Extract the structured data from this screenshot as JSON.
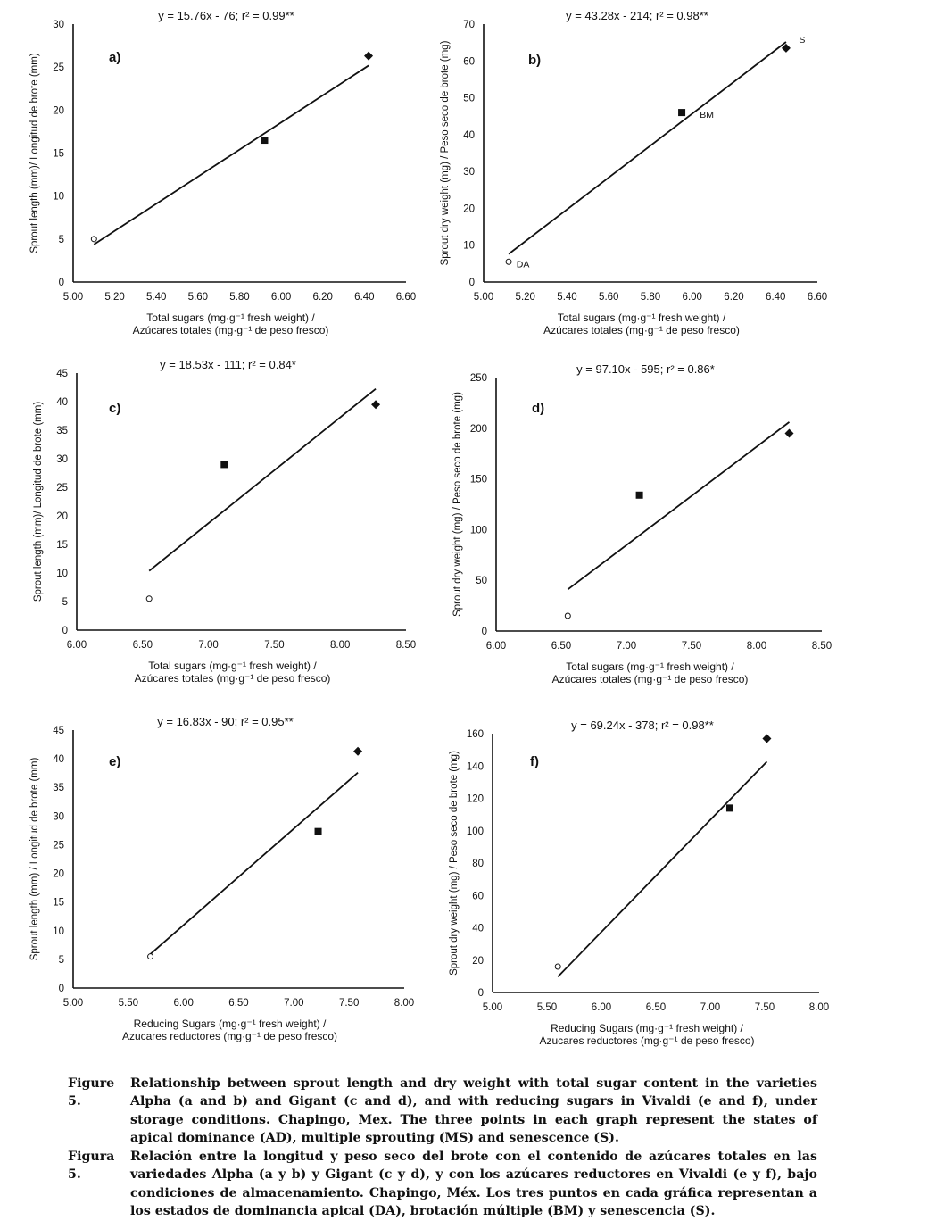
{
  "panels": [
    {
      "id": "a",
      "panel_label": "a)",
      "equation": "y = 15.76x - 76; r² = 0.99**",
      "ylabel": "Sprout length (mm)/ Longitud de brote (mm)",
      "xlabel_line1": "Total sugars (mg·g⁻¹ fresh weight) /",
      "xlabel_line2": "Azúcares totales (mg·g⁻¹ de peso fresco)",
      "xticks": [
        "5.00",
        "5.20",
        "5.40",
        "5.60",
        "5.80",
        "6.00",
        "6.20",
        "6.40",
        "6.60"
      ],
      "yticks": [
        "0",
        "5",
        "10",
        "15",
        "20",
        "25",
        "30"
      ],
      "point_labels": []
    },
    {
      "id": "b",
      "panel_label": "b)",
      "equation": "y = 43.28x - 214; r² = 0.98**",
      "ylabel": "Sprout dry weight (mg) / Peso seco de brote (mg)",
      "xlabel_line1": "Total sugars (mg·g⁻¹ fresh weight) /",
      "xlabel_line2": "Azúcares totales (mg·g⁻¹ de peso fresco)",
      "xticks": [
        "5.00",
        "5.20",
        "5.40",
        "5.60",
        "5.80",
        "6.00",
        "6.20",
        "6.40",
        "6.60"
      ],
      "yticks": [
        "0",
        "10",
        "20",
        "30",
        "40",
        "50",
        "60",
        "70"
      ],
      "point_labels": [
        "DA",
        "BM",
        "S"
      ]
    },
    {
      "id": "c",
      "panel_label": "c)",
      "equation": "y = 18.53x - 111; r² = 0.84*",
      "ylabel": "Sprout length (mm)/ Longitud de brote (mm)",
      "xlabel_line1": "Total sugars (mg·g⁻¹ fresh weight) /",
      "xlabel_line2": "Azúcares totales (mg·g⁻¹ de peso fresco)",
      "xticks": [
        "6.00",
        "6.50",
        "7.00",
        "7.50",
        "8.00",
        "8.50"
      ],
      "yticks": [
        "0",
        "5",
        "10",
        "15",
        "20",
        "25",
        "30",
        "35",
        "40",
        "45"
      ],
      "point_labels": []
    },
    {
      "id": "d",
      "panel_label": "d)",
      "equation": "y = 97.10x - 595; r² = 0.86*",
      "ylabel": "Sprout dry weight (mg) / Peso seco de brote (mg)",
      "xlabel_line1": "Total sugars (mg·g⁻¹ fresh weight) /",
      "xlabel_line2": "Azúcares totales (mg·g⁻¹ de peso fresco)",
      "xticks": [
        "6.00",
        "6.50",
        "7.00",
        "7.50",
        "8.00",
        "8.50"
      ],
      "yticks": [
        "0",
        "50",
        "100",
        "150",
        "200",
        "250"
      ],
      "point_labels": []
    },
    {
      "id": "e",
      "panel_label": "e)",
      "equation": "y = 16.83x - 90; r² = 0.95**",
      "ylabel": "Sprout length (mm) / Longitud de brote (mm)",
      "xlabel_line1": "Reducing Sugars (mg·g⁻¹ fresh weight) /",
      "xlabel_line2": "Azucares reductores (mg·g⁻¹ de peso fresco)",
      "xticks": [
        "5.00",
        "5.50",
        "6.00",
        "6.50",
        "7.00",
        "7.50",
        "8.00"
      ],
      "yticks": [
        "0",
        "5",
        "10",
        "15",
        "20",
        "25",
        "30",
        "35",
        "40",
        "45"
      ],
      "point_labels": []
    },
    {
      "id": "f",
      "panel_label": "f)",
      "equation": "y = 69.24x - 378; r² = 0.98**",
      "ylabel": "Sprout dry weight (mg) / Peso seco de brote (mg)",
      "xlabel_line1": "Reducing Sugars (mg·g⁻¹ fresh weight) /",
      "xlabel_line2": "Azucares reductores (mg·g⁻¹ de peso fresco)",
      "xticks": [
        "5.00",
        "5.50",
        "6.00",
        "6.50",
        "7.00",
        "7.50",
        "8.00"
      ],
      "yticks": [
        "0",
        "20",
        "40",
        "60",
        "80",
        "100",
        "120",
        "140",
        "160"
      ],
      "point_labels": []
    }
  ],
  "chart_data": [
    {
      "type": "scatter",
      "panel": "a",
      "xlim": [
        5.0,
        6.6
      ],
      "ylim": [
        0,
        30
      ],
      "points": [
        {
          "state": "AD",
          "marker": "circle-open",
          "x": 5.1,
          "y": 5.0
        },
        {
          "state": "MS",
          "marker": "square",
          "x": 5.92,
          "y": 16.5
        },
        {
          "state": "S",
          "marker": "diamond",
          "x": 6.42,
          "y": 26.3
        }
      ],
      "fit": {
        "slope": 15.76,
        "intercept": -76,
        "x_range": [
          5.1,
          6.42
        ]
      }
    },
    {
      "type": "scatter",
      "panel": "b",
      "xlim": [
        5.0,
        6.6
      ],
      "ylim": [
        0,
        70
      ],
      "points": [
        {
          "state": "DA",
          "marker": "circle-open",
          "x": 5.12,
          "y": 5.5
        },
        {
          "state": "BM",
          "marker": "square",
          "x": 5.95,
          "y": 46.0
        },
        {
          "state": "S",
          "marker": "diamond",
          "x": 6.45,
          "y": 63.5
        }
      ],
      "fit": {
        "slope": 43.28,
        "intercept": -214,
        "x_range": [
          5.12,
          6.45
        ]
      }
    },
    {
      "type": "scatter",
      "panel": "c",
      "xlim": [
        6.0,
        8.5
      ],
      "ylim": [
        0,
        45
      ],
      "points": [
        {
          "state": "AD",
          "marker": "circle-open",
          "x": 6.55,
          "y": 5.5
        },
        {
          "state": "MS",
          "marker": "square",
          "x": 7.12,
          "y": 29.0
        },
        {
          "state": "S",
          "marker": "diamond",
          "x": 8.27,
          "y": 39.5
        }
      ],
      "fit": {
        "slope": 18.53,
        "intercept": -111,
        "x_range": [
          6.55,
          8.27
        ]
      }
    },
    {
      "type": "scatter",
      "panel": "d",
      "xlim": [
        6.0,
        8.5
      ],
      "ylim": [
        0,
        250
      ],
      "points": [
        {
          "state": "AD",
          "marker": "circle-open",
          "x": 6.55,
          "y": 15
        },
        {
          "state": "MS",
          "marker": "square",
          "x": 7.1,
          "y": 134
        },
        {
          "state": "S",
          "marker": "diamond",
          "x": 8.25,
          "y": 195
        }
      ],
      "fit": {
        "slope": 97.1,
        "intercept": -595,
        "x_range": [
          6.55,
          8.25
        ]
      }
    },
    {
      "type": "scatter",
      "panel": "e",
      "xlim": [
        5.0,
        8.0
      ],
      "ylim": [
        0,
        45
      ],
      "points": [
        {
          "state": "AD",
          "marker": "circle-open",
          "x": 5.7,
          "y": 5.5
        },
        {
          "state": "MS",
          "marker": "square",
          "x": 7.22,
          "y": 27.3
        },
        {
          "state": "S",
          "marker": "diamond",
          "x": 7.58,
          "y": 41.3
        }
      ],
      "fit": {
        "slope": 16.83,
        "intercept": -90,
        "x_range": [
          5.7,
          7.58
        ]
      }
    },
    {
      "type": "scatter",
      "panel": "f",
      "xlim": [
        5.0,
        8.0
      ],
      "ylim": [
        0,
        160
      ],
      "points": [
        {
          "state": "AD",
          "marker": "circle-open",
          "x": 5.6,
          "y": 16
        },
        {
          "state": "MS",
          "marker": "square",
          "x": 7.18,
          "y": 114
        },
        {
          "state": "S",
          "marker": "diamond",
          "x": 7.52,
          "y": 157
        }
      ],
      "fit": {
        "slope": 69.24,
        "intercept": -378,
        "x_range": [
          5.6,
          7.52
        ]
      }
    }
  ],
  "caption_en": {
    "label": "Figure 5.",
    "text": "Relationship between sprout length and dry weight with total sugar content in the varieties Alpha (a and b) and Gigant (c and d), and with reducing sugars in Vivaldi (e and f), under storage conditions. Chapingo, Mex. The three points in each graph represent the states of apical dominance (AD), multiple sprouting (MS) and senescence (S)."
  },
  "caption_es": {
    "label": "Figura 5.",
    "text": "Relación entre la longitud y peso seco del brote con el contenido de azúcares totales en las variedades Alpha (a y b) y Gigant (c y d), y con los azúcares reductores en Vivaldi (e y f), bajo condiciones de almacenamiento. Chapingo, Méx. Los tres puntos en cada gráfica representan a los estados de dominancia apical (DA), brotación múltiple (BM) y senescencia (S)."
  }
}
